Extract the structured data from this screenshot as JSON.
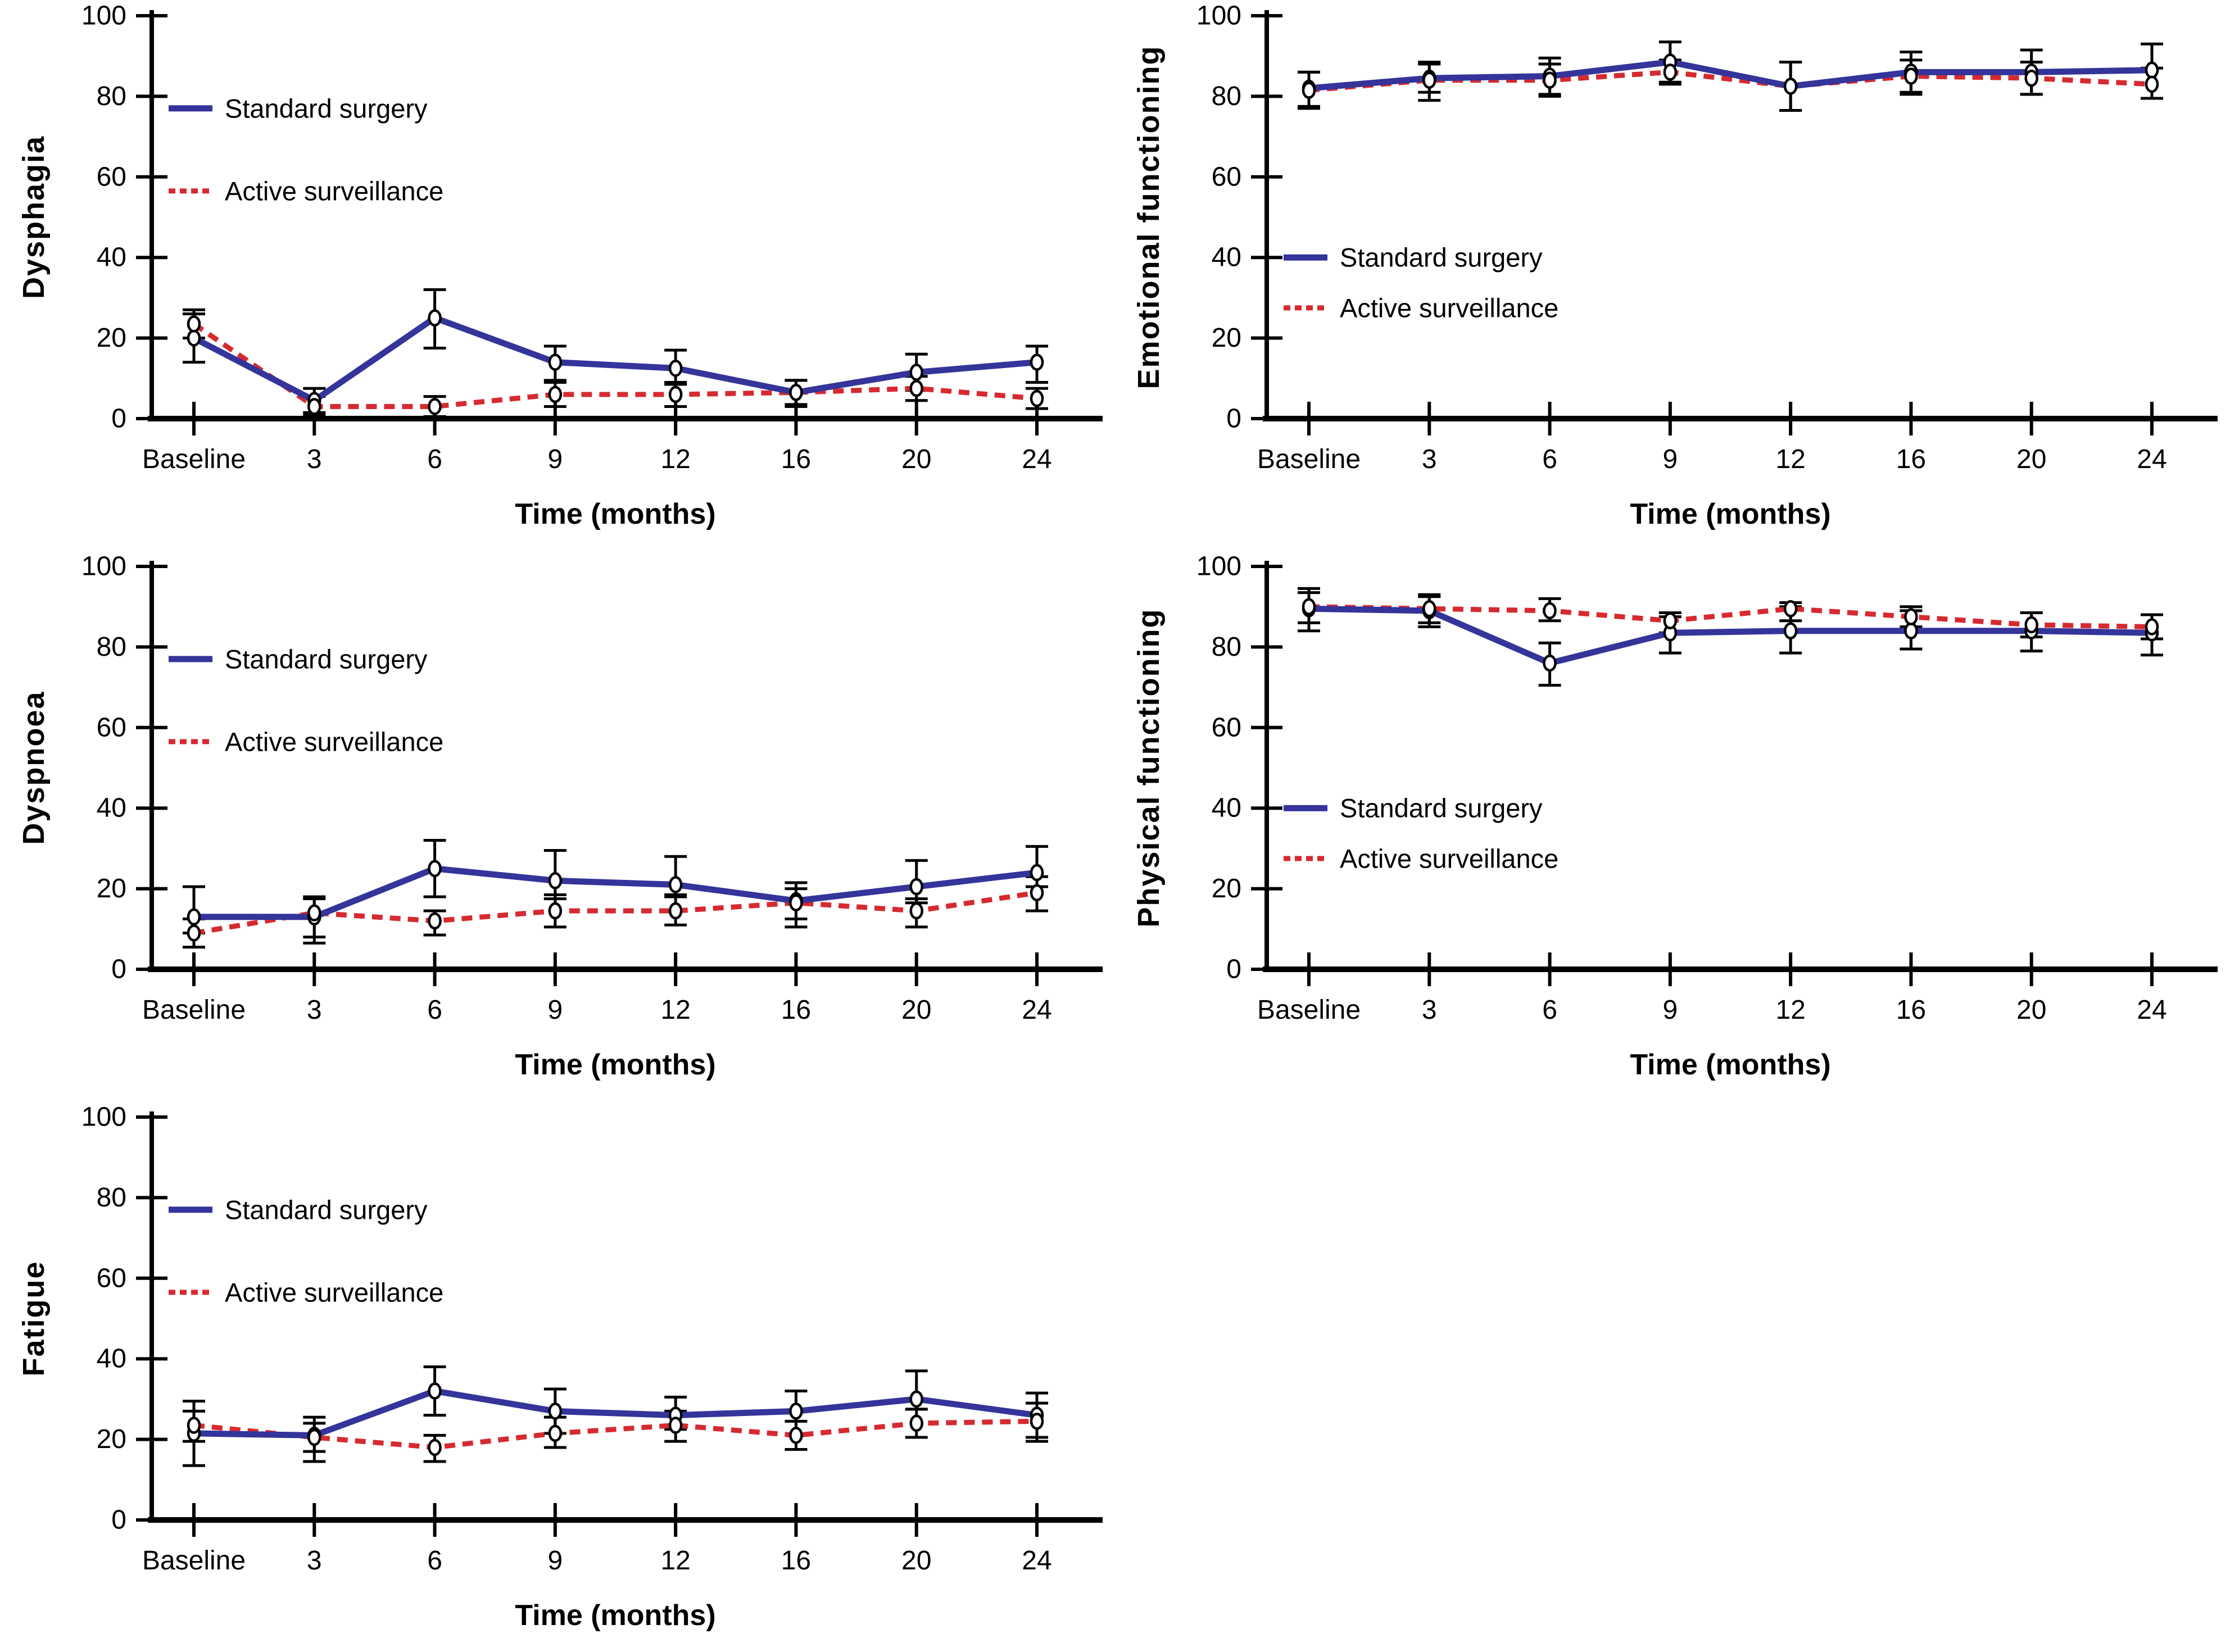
{
  "figure": {
    "background": "#ffffff",
    "series_colors": {
      "standard_surgery": "#34349B",
      "active_surveillance": "#D62A30"
    },
    "marker": "open-circle",
    "error_bar_color": "#000000"
  },
  "chart_data": [
    {
      "id": "dysphagia",
      "type": "line",
      "title": "",
      "xlabel": "Time (months)",
      "ylabel": "Dysphagia",
      "categories": [
        "Baseline",
        "3",
        "6",
        "9",
        "12",
        "16",
        "20",
        "24"
      ],
      "yticks": [
        0,
        20,
        40,
        60,
        80,
        100
      ],
      "ylim": [
        0,
        100
      ],
      "grid": false,
      "legend_position": "upper-left",
      "series": [
        {
          "name": "Standard surgery",
          "color": "#34349B",
          "style": "solid",
          "values": [
            20,
            4.5,
            25,
            14,
            12.5,
            6.5,
            11.5,
            14
          ],
          "err_lo": [
            14,
            1.5,
            17.5,
            9.5,
            8.5,
            3,
            7,
            9
          ],
          "err_hi": [
            26,
            7.5,
            32,
            18,
            17,
            9.5,
            16,
            18
          ]
        },
        {
          "name": "Active surveillance",
          "color": "#D62A30",
          "style": "dashed",
          "values": [
            23.5,
            3,
            3,
            6,
            6,
            6.5,
            7.5,
            5
          ],
          "err_lo": [
            20,
            1,
            0.5,
            3,
            3,
            3.5,
            4.5,
            2.5
          ],
          "err_hi": [
            27,
            5.5,
            5.5,
            9,
            9,
            9.5,
            10.5,
            7.5
          ]
        }
      ]
    },
    {
      "id": "emotional-functioning",
      "type": "line",
      "title": "",
      "xlabel": "Time (months)",
      "ylabel": "Emotional functioning",
      "categories": [
        "Baseline",
        "3",
        "6",
        "9",
        "12",
        "16",
        "20",
        "24"
      ],
      "yticks": [
        0,
        20,
        40,
        60,
        80,
        100
      ],
      "ylim": [
        0,
        100
      ],
      "grid": false,
      "legend_position": "mid-left",
      "series": [
        {
          "name": "Standard surgery",
          "color": "#34349B",
          "style": "solid",
          "values": [
            82,
            84.5,
            85,
            88.5,
            82.5,
            86,
            86,
            86.5
          ],
          "err_lo": [
            77.5,
            81,
            80.5,
            83.5,
            76.5,
            80.5,
            80.5,
            79.5
          ],
          "err_hi": [
            86,
            88,
            89.5,
            93.5,
            88.5,
            91,
            91.5,
            93
          ]
        },
        {
          "name": "Active surveillance",
          "color": "#D62A30",
          "style": "dashed",
          "values": [
            81.5,
            84,
            84,
            86,
            82.5,
            85,
            84.5,
            83
          ],
          "err_lo": [
            77,
            79,
            80,
            83,
            76.5,
            81,
            80.5,
            79.5
          ],
          "err_hi": [
            86,
            88.5,
            88,
            89,
            88.5,
            89,
            88.5,
            87
          ]
        }
      ]
    },
    {
      "id": "dyspnoea",
      "type": "line",
      "title": "",
      "xlabel": "Time (months)",
      "ylabel": "Dyspnoea",
      "categories": [
        "Baseline",
        "3",
        "6",
        "9",
        "12",
        "16",
        "20",
        "24"
      ],
      "yticks": [
        0,
        20,
        40,
        60,
        80,
        100
      ],
      "ylim": [
        0,
        100
      ],
      "grid": false,
      "legend_position": "upper-left",
      "series": [
        {
          "name": "Standard surgery",
          "color": "#34349B",
          "style": "solid",
          "values": [
            13,
            13,
            25,
            22,
            21,
            17,
            20.5,
            24
          ],
          "err_lo": [
            9,
            8,
            18,
            17.5,
            18,
            12.5,
            16.5,
            20.5
          ],
          "err_hi": [
            20.5,
            18,
            32,
            29.5,
            28,
            21.5,
            27,
            30.5
          ]
        },
        {
          "name": "Active surveillance",
          "color": "#D62A30",
          "style": "dashed",
          "values": [
            9,
            14,
            12,
            14.5,
            14.5,
            16.5,
            14.5,
            19
          ],
          "err_lo": [
            5.5,
            6.5,
            8.5,
            10.5,
            11,
            10.5,
            10.5,
            14.5
          ],
          "err_hi": [
            12.5,
            17.5,
            14.5,
            18.5,
            18.5,
            20,
            17.5,
            23
          ]
        }
      ]
    },
    {
      "id": "physical-functioning",
      "type": "line",
      "title": "",
      "xlabel": "Time (months)",
      "ylabel": "Physical functioning",
      "categories": [
        "Baseline",
        "3",
        "6",
        "9",
        "12",
        "16",
        "20",
        "24"
      ],
      "yticks": [
        0,
        20,
        40,
        60,
        80,
        100
      ],
      "ylim": [
        0,
        100
      ],
      "grid": false,
      "legend_position": "mid-left",
      "series": [
        {
          "name": "Standard surgery",
          "color": "#34349B",
          "style": "solid",
          "values": [
            89.5,
            89,
            76,
            83.5,
            84,
            84,
            84,
            83.5
          ],
          "err_lo": [
            84,
            85,
            70.5,
            78.5,
            78.5,
            79.5,
            79,
            78
          ],
          "err_hi": [
            94.5,
            92.5,
            81,
            87.5,
            90,
            89,
            88.5,
            88
          ]
        },
        {
          "name": "Active surveillance",
          "color": "#D62A30",
          "style": "dashed",
          "values": [
            90,
            89.5,
            89,
            86.5,
            89.5,
            87.5,
            85.5,
            85
          ],
          "err_lo": [
            86,
            86,
            86.5,
            83.5,
            86.5,
            85,
            82.5,
            82
          ],
          "err_hi": [
            93.5,
            93,
            92,
            88.5,
            91,
            90,
            88.5,
            88
          ]
        }
      ]
    },
    {
      "id": "fatigue",
      "type": "line",
      "title": "",
      "xlabel": "Time (months)",
      "ylabel": "Fatigue",
      "categories": [
        "Baseline",
        "3",
        "6",
        "9",
        "12",
        "16",
        "20",
        "24"
      ],
      "yticks": [
        0,
        20,
        40,
        60,
        80,
        100
      ],
      "ylim": [
        0,
        100
      ],
      "grid": false,
      "legend_position": "upper-left",
      "series": [
        {
          "name": "Standard surgery",
          "color": "#34349B",
          "style": "solid",
          "values": [
            21.5,
            21,
            32,
            27,
            26,
            27,
            30,
            26
          ],
          "err_lo": [
            13.5,
            17,
            26,
            21.5,
            22.5,
            21,
            27.5,
            20.5
          ],
          "err_hi": [
            27,
            25.5,
            38,
            32.5,
            30.5,
            32,
            37,
            31.5
          ]
        },
        {
          "name": "Active surveillance",
          "color": "#D62A30",
          "style": "dashed",
          "values": [
            23.5,
            20.5,
            18,
            21.5,
            23.5,
            21,
            24,
            24.5
          ],
          "err_lo": [
            19.5,
            14.5,
            14.5,
            18,
            19.5,
            17.5,
            20.5,
            19.5
          ],
          "err_hi": [
            29.5,
            24,
            21,
            25.5,
            27,
            24.5,
            27.5,
            29
          ]
        }
      ]
    }
  ]
}
